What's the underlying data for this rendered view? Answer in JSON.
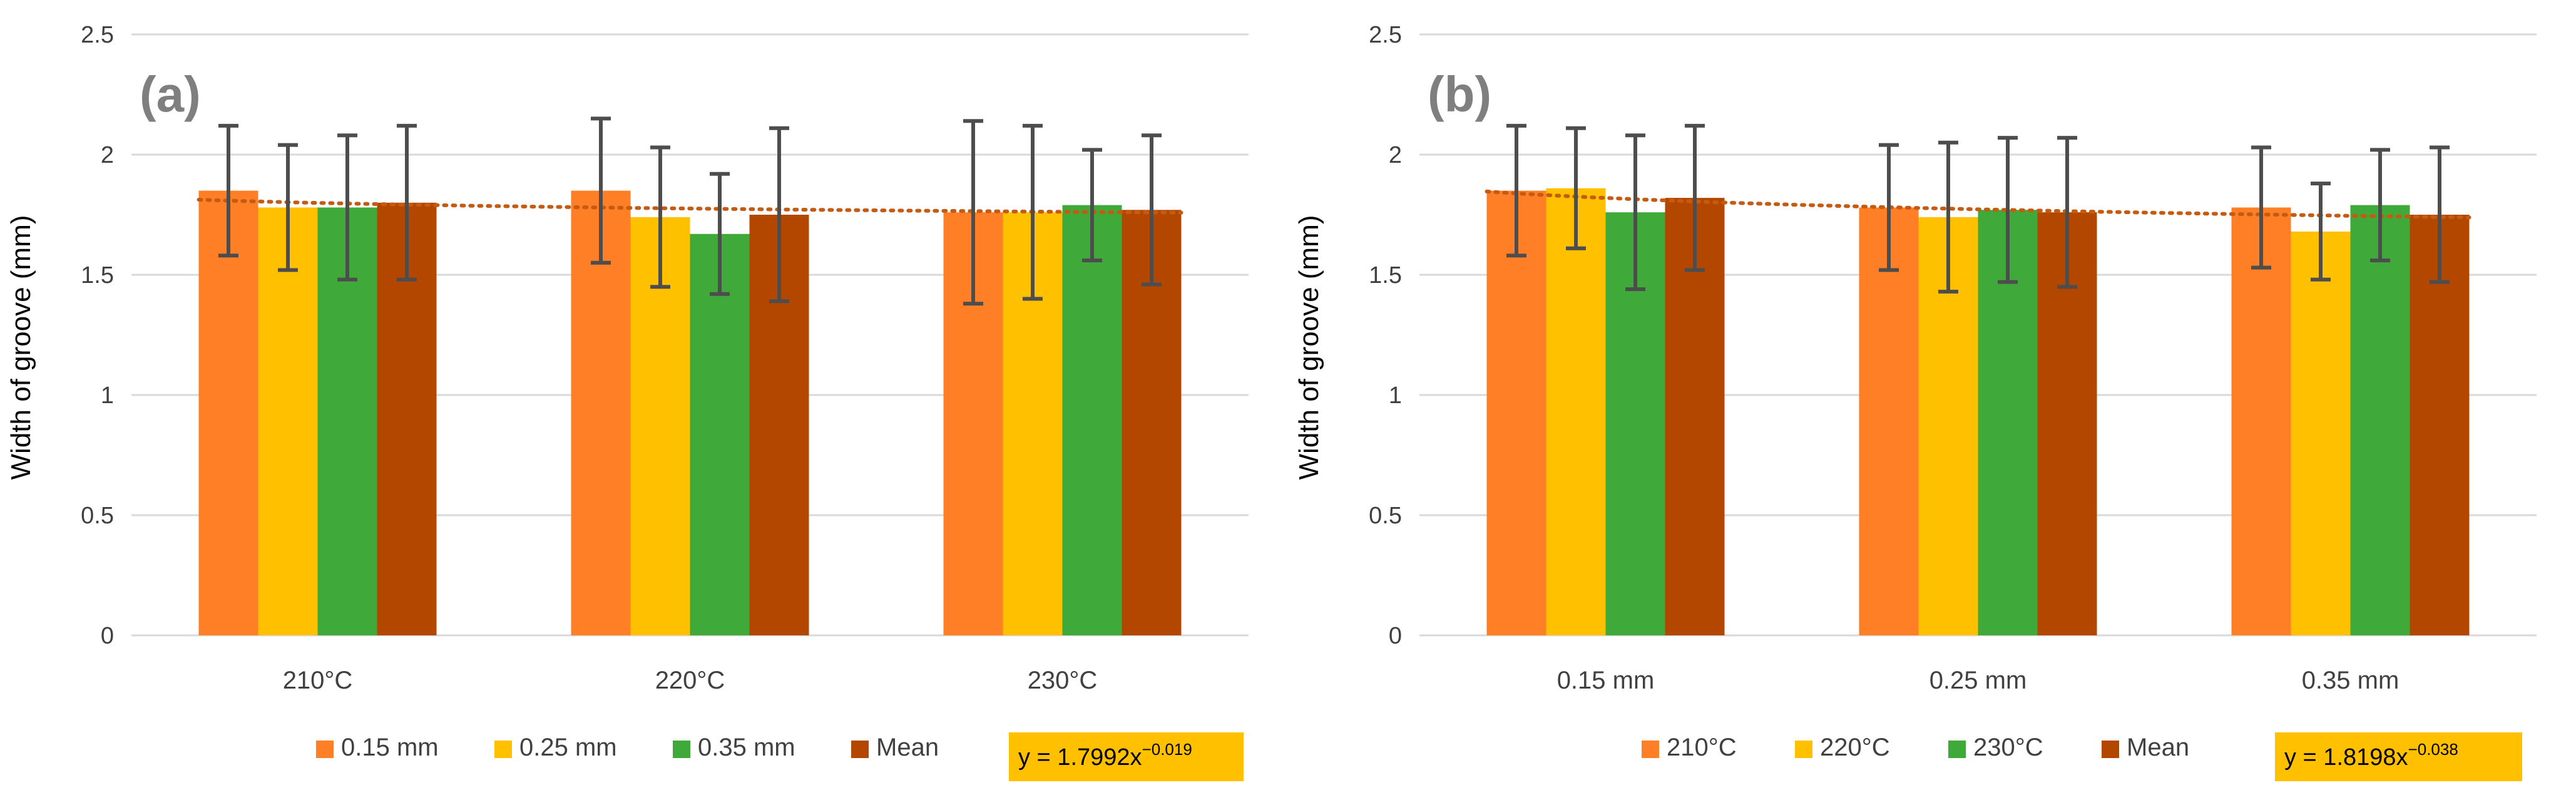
{
  "colors": {
    "orange": "#FF7F27",
    "gold": "#FFC000",
    "green": "#3FAA3A",
    "brown": "#B34700",
    "trend": "#C55A11",
    "error_bar": "#4D4D4D",
    "grid": "#D9D9D9",
    "equation_bg": "#FFC000",
    "panel_letter": "#7F7F7F"
  },
  "chart_data": [
    {
      "type": "bar",
      "panel_label": "(a)",
      "title": "",
      "xlabel": "",
      "ylabel": "Width of groove (mm)",
      "ylim": [
        0,
        2.5
      ],
      "yticks": [
        "0",
        "0.5",
        "1",
        "1.5",
        "2",
        "2.5"
      ],
      "categories": [
        "210°C",
        "220°C",
        "230°C"
      ],
      "series": [
        {
          "name": "0.15 mm",
          "color": "#FF7F27",
          "values": [
            1.85,
            1.85,
            1.76
          ],
          "errors": [
            0.27,
            0.3,
            0.38
          ]
        },
        {
          "name": "0.25 mm",
          "color": "#FFC000",
          "values": [
            1.78,
            1.74,
            1.76
          ],
          "errors": [
            0.26,
            0.29,
            0.36
          ]
        },
        {
          "name": "0.35 mm",
          "color": "#3FAA3A",
          "values": [
            1.78,
            1.67,
            1.79
          ],
          "errors": [
            0.3,
            0.25,
            0.23
          ]
        },
        {
          "name": "Mean",
          "color": "#B34700",
          "values": [
            1.8,
            1.75,
            1.77
          ],
          "errors": [
            0.32,
            0.36,
            0.31
          ]
        }
      ],
      "trendline": {
        "base": "y = 1.7992x",
        "exponent": "−0.019",
        "a": 1.7992,
        "b": -0.019
      }
    },
    {
      "type": "bar",
      "panel_label": "(b)",
      "title": "",
      "xlabel": "",
      "ylabel": "Width of groove (mm)",
      "ylim": [
        0,
        2.5
      ],
      "yticks": [
        "0",
        "0.5",
        "1",
        "1.5",
        "2",
        "2.5"
      ],
      "categories": [
        "0.15 mm",
        "0.25 mm",
        "0.35 mm"
      ],
      "series": [
        {
          "name": "210°C",
          "color": "#FF7F27",
          "values": [
            1.85,
            1.78,
            1.78
          ],
          "errors": [
            0.27,
            0.26,
            0.25
          ]
        },
        {
          "name": "220°C",
          "color": "#FFC000",
          "values": [
            1.86,
            1.74,
            1.68
          ],
          "errors": [
            0.25,
            0.31,
            0.2
          ]
        },
        {
          "name": "230°C",
          "color": "#3FAA3A",
          "values": [
            1.76,
            1.77,
            1.79
          ],
          "errors": [
            0.32,
            0.3,
            0.23
          ]
        },
        {
          "name": "Mean",
          "color": "#B34700",
          "values": [
            1.82,
            1.76,
            1.75
          ],
          "errors": [
            0.3,
            0.31,
            0.28
          ]
        }
      ],
      "trendline": {
        "base": "y = 1.8198x",
        "exponent": "−0.038",
        "a": 1.8198,
        "b": -0.038
      }
    }
  ]
}
